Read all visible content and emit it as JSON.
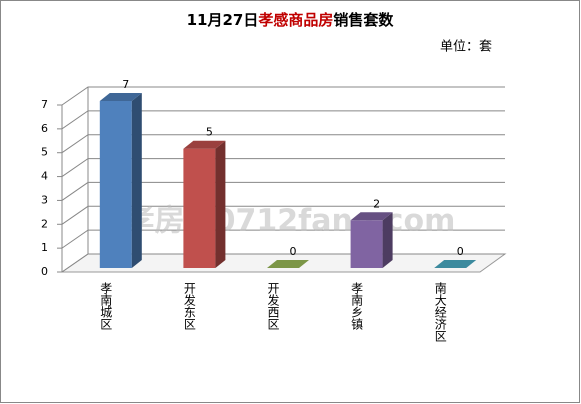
{
  "chart_data": {
    "type": "bar3d",
    "title_parts": [
      "11月27日",
      "孝感商品房",
      "销售套数"
    ],
    "title_colors": [
      "#000000",
      "#c00000",
      "#000000"
    ],
    "unit": "单位：套",
    "watermark": "孝房网0712fang.com",
    "categories": [
      "孝南城区",
      "开发东区",
      "开发西区",
      "孝南乡镇",
      "南大经济区"
    ],
    "values": [
      7,
      5,
      0,
      2,
      0
    ],
    "colors": [
      "#4f81bd",
      "#c0504d",
      "#9bbb59",
      "#8064a2",
      "#4bacc6"
    ],
    "ylim": [
      0,
      7
    ],
    "yticks": [
      0,
      1,
      2,
      3,
      4,
      5,
      6,
      7
    ],
    "grid": true
  }
}
